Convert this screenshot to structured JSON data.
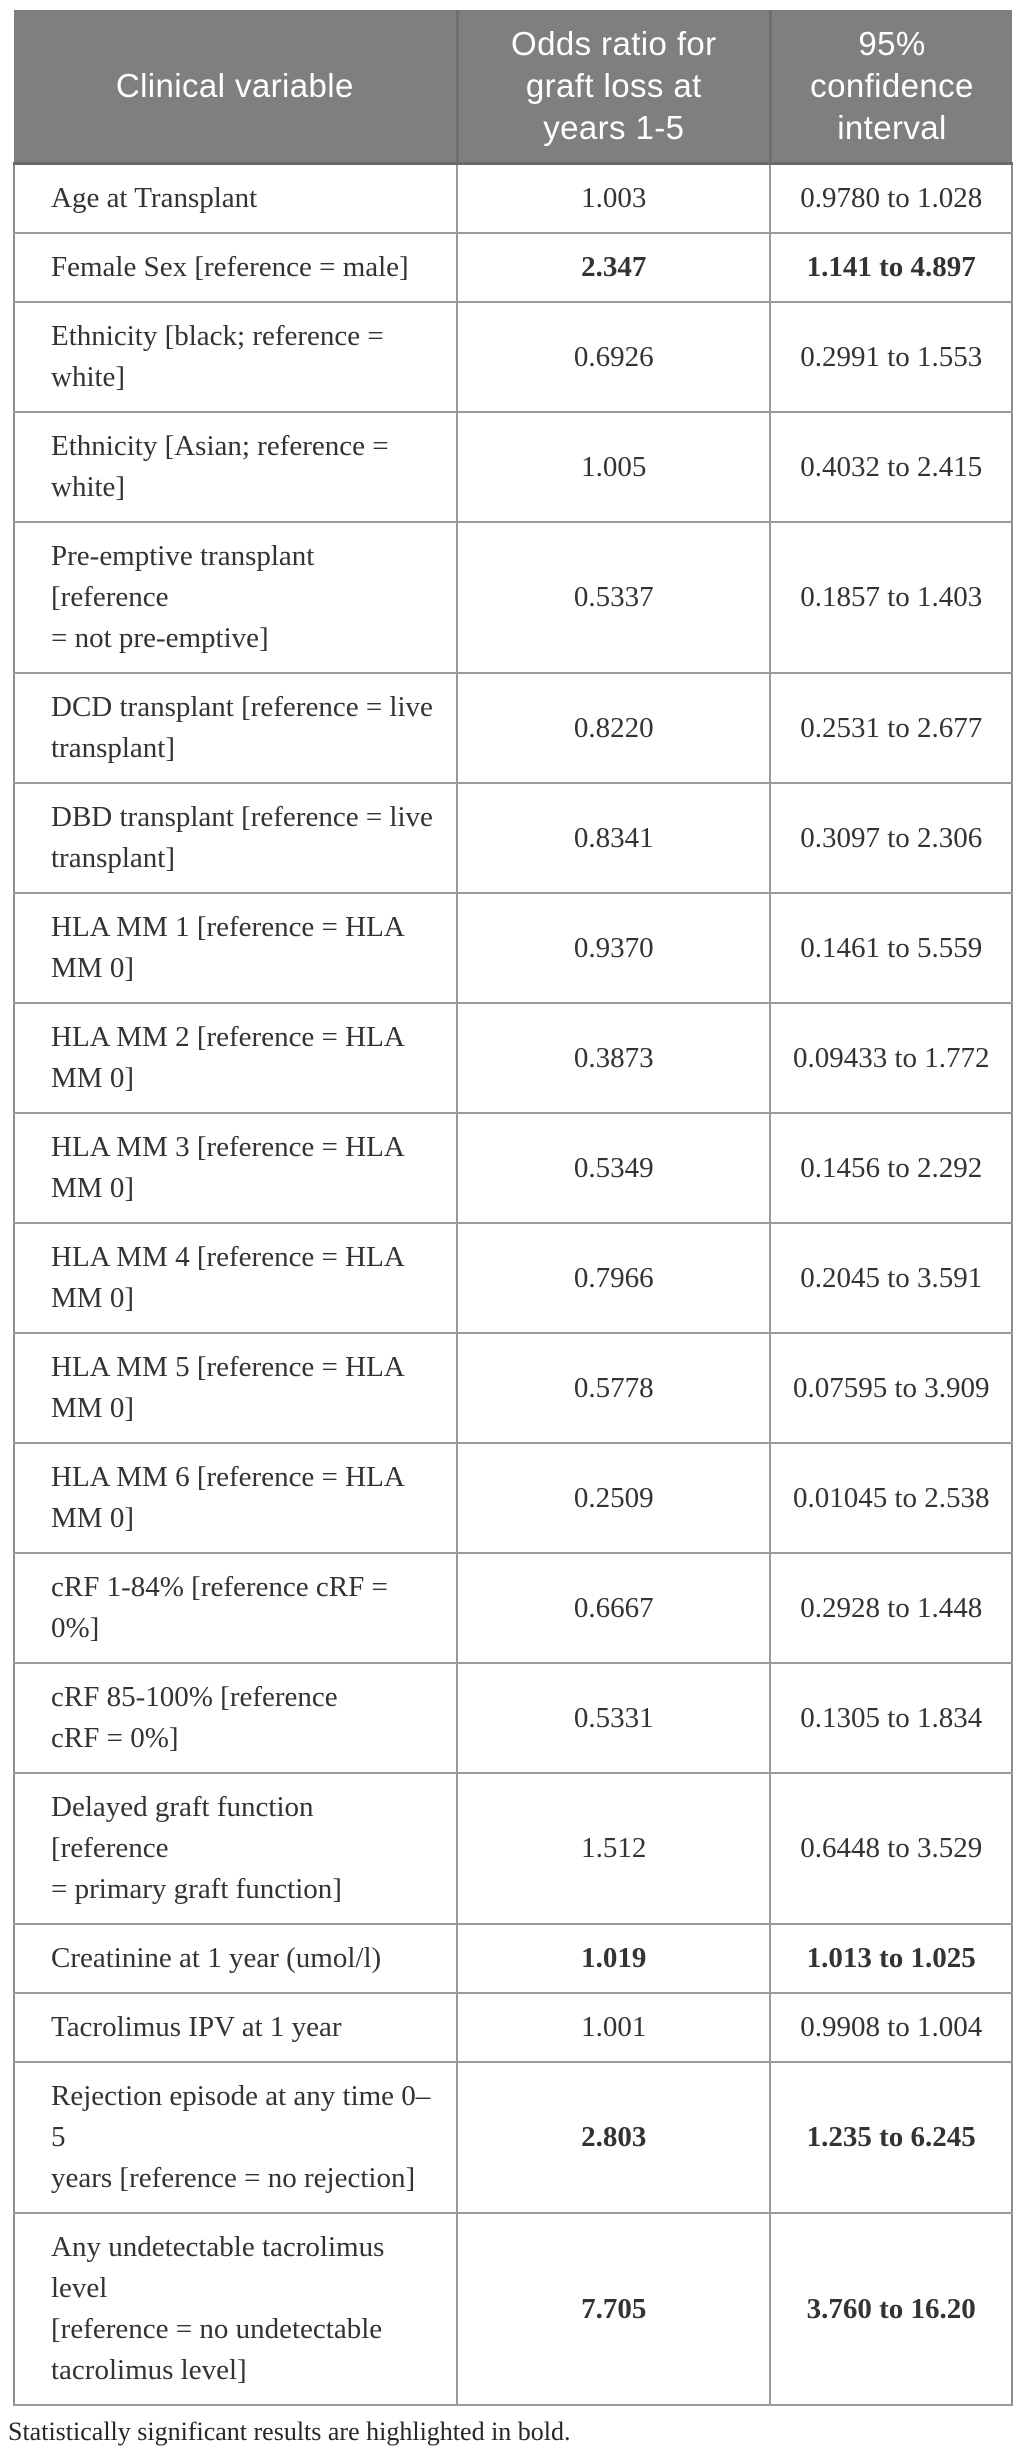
{
  "colors": {
    "header_background": "#7e807e",
    "header_text": "#ffffff",
    "grid_line": "#9a9a9a",
    "body_text": "#333333"
  },
  "table": {
    "columns": [
      {
        "label": "Clinical variable"
      },
      {
        "label": "Odds ratio for\ngraft loss at\nyears 1-5"
      },
      {
        "label": "95%\nconfidence\ninterval"
      }
    ],
    "rows": [
      {
        "variable": "Age at Transplant",
        "odds_ratio": "1.003",
        "ci": "0.9780 to 1.028",
        "significant": false
      },
      {
        "variable": "Female Sex [reference = male]",
        "odds_ratio": "2.347",
        "ci": "1.141 to 4.897",
        "significant": true
      },
      {
        "variable": "Ethnicity [black; reference =\nwhite]",
        "odds_ratio": "0.6926",
        "ci": "0.2991 to 1.553",
        "significant": false
      },
      {
        "variable": "Ethnicity [Asian; reference =\nwhite]",
        "odds_ratio": "1.005",
        "ci": "0.4032 to 2.415",
        "significant": false
      },
      {
        "variable": "Pre-emptive transplant [reference\n= not pre-emptive]",
        "odds_ratio": "0.5337",
        "ci": "0.1857 to 1.403",
        "significant": false
      },
      {
        "variable": "DCD transplant [reference = live\ntransplant]",
        "odds_ratio": "0.8220",
        "ci": "0.2531 to 2.677",
        "significant": false
      },
      {
        "variable": "DBD transplant [reference = live\ntransplant]",
        "odds_ratio": "0.8341",
        "ci": "0.3097 to 2.306",
        "significant": false
      },
      {
        "variable": "HLA MM 1 [reference = HLA\nMM 0]",
        "odds_ratio": "0.9370",
        "ci": "0.1461 to 5.559",
        "significant": false
      },
      {
        "variable": "HLA MM 2 [reference = HLA\nMM 0]",
        "odds_ratio": "0.3873",
        "ci": "0.09433 to 1.772",
        "significant": false
      },
      {
        "variable": "HLA MM 3 [reference = HLA\nMM 0]",
        "odds_ratio": "0.5349",
        "ci": "0.1456 to 2.292",
        "significant": false
      },
      {
        "variable": "HLA MM 4 [reference = HLA\nMM 0]",
        "odds_ratio": "0.7966",
        "ci": "0.2045 to 3.591",
        "significant": false
      },
      {
        "variable": "HLA MM 5 [reference = HLA\nMM 0]",
        "odds_ratio": "0.5778",
        "ci": "0.07595 to 3.909",
        "significant": false
      },
      {
        "variable": "HLA MM 6 [reference = HLA\nMM 0]",
        "odds_ratio": "0.2509",
        "ci": "0.01045 to 2.538",
        "significant": false
      },
      {
        "variable": "cRF 1-84% [reference cRF = 0%]",
        "odds_ratio": "0.6667",
        "ci": "0.2928 to 1.448",
        "significant": false
      },
      {
        "variable": "cRF 85-100% [reference\ncRF = 0%]",
        "odds_ratio": "0.5331",
        "ci": "0.1305 to 1.834",
        "significant": false
      },
      {
        "variable": "Delayed graft function [reference\n= primary graft function]",
        "odds_ratio": "1.512",
        "ci": "0.6448 to 3.529",
        "significant": false
      },
      {
        "variable": "Creatinine at 1 year (umol/l)",
        "odds_ratio": "1.019",
        "ci": "1.013 to 1.025",
        "significant": true
      },
      {
        "variable": "Tacrolimus IPV at 1 year",
        "odds_ratio": "1.001",
        "ci": "0.9908 to 1.004",
        "significant": false
      },
      {
        "variable": "Rejection episode at any time 0–5\nyears [reference = no rejection]",
        "odds_ratio": "2.803",
        "ci": "1.235 to 6.245",
        "significant": true
      },
      {
        "variable": "Any undetectable tacrolimus level\n[reference = no undetectable\ntacrolimus level]",
        "odds_ratio": "7.705",
        "ci": "3.760 to 16.20",
        "significant": true
      }
    ]
  },
  "footnote": "Statistically significant results are highlighted in bold."
}
